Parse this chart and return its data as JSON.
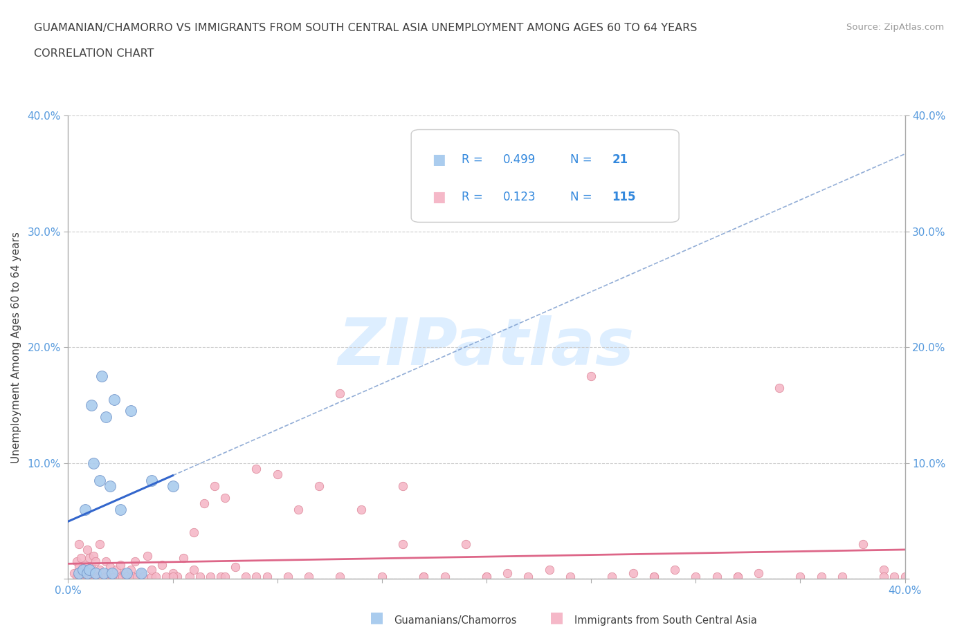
{
  "title_line1": "GUAMANIAN/CHAMORRO VS IMMIGRANTS FROM SOUTH CENTRAL ASIA UNEMPLOYMENT AMONG AGES 60 TO 64 YEARS",
  "title_line2": "CORRELATION CHART",
  "source_text": "Source: ZipAtlas.com",
  "ylabel": "Unemployment Among Ages 60 to 64 years",
  "xlim": [
    0.0,
    0.4
  ],
  "ylim": [
    0.0,
    0.4
  ],
  "series1_label": "Guamanians/Chamorros",
  "series1_color": "#aaccee",
  "series1_edge_color": "#7799cc",
  "series1_line_color": "#3366cc",
  "series1_dash_color": "#7799cc",
  "series1_R": 0.499,
  "series1_N": 21,
  "series2_label": "Immigrants from South Central Asia",
  "series2_color": "#f5b8c8",
  "series2_edge_color": "#dd8899",
  "series2_line_color": "#dd6688",
  "series2_R": 0.123,
  "series2_N": 115,
  "legend_color": "#3388dd",
  "watermark_text": "ZIPatlas",
  "watermark_color": "#ddeeff",
  "background_color": "#ffffff",
  "grid_color": "#cccccc",
  "title_color": "#404040",
  "axis_color": "#aaaaaa",
  "tick_color": "#5599dd",
  "s1_x": [
    0.005,
    0.007,
    0.008,
    0.009,
    0.01,
    0.011,
    0.012,
    0.013,
    0.015,
    0.016,
    0.017,
    0.018,
    0.02,
    0.021,
    0.022,
    0.025,
    0.028,
    0.03,
    0.035,
    0.04,
    0.05
  ],
  "s1_y": [
    0.005,
    0.008,
    0.06,
    0.005,
    0.008,
    0.15,
    0.1,
    0.005,
    0.085,
    0.175,
    0.005,
    0.14,
    0.08,
    0.005,
    0.155,
    0.06,
    0.005,
    0.145,
    0.005,
    0.085,
    0.08
  ],
  "s2_x": [
    0.003,
    0.004,
    0.004,
    0.005,
    0.005,
    0.005,
    0.006,
    0.006,
    0.007,
    0.007,
    0.008,
    0.008,
    0.009,
    0.009,
    0.01,
    0.01,
    0.01,
    0.011,
    0.011,
    0.012,
    0.012,
    0.013,
    0.013,
    0.014,
    0.015,
    0.015,
    0.015,
    0.016,
    0.017,
    0.018,
    0.018,
    0.019,
    0.02,
    0.02,
    0.021,
    0.022,
    0.023,
    0.025,
    0.025,
    0.026,
    0.027,
    0.028,
    0.03,
    0.03,
    0.031,
    0.032,
    0.033,
    0.035,
    0.036,
    0.038,
    0.04,
    0.04,
    0.042,
    0.045,
    0.047,
    0.05,
    0.052,
    0.055,
    0.058,
    0.06,
    0.063,
    0.065,
    0.068,
    0.07,
    0.073,
    0.075,
    0.08,
    0.085,
    0.09,
    0.095,
    0.1,
    0.105,
    0.11,
    0.115,
    0.12,
    0.13,
    0.14,
    0.15,
    0.16,
    0.17,
    0.18,
    0.19,
    0.2,
    0.21,
    0.22,
    0.23,
    0.24,
    0.25,
    0.26,
    0.27,
    0.28,
    0.29,
    0.3,
    0.31,
    0.32,
    0.33,
    0.34,
    0.35,
    0.36,
    0.37,
    0.38,
    0.39,
    0.395,
    0.32,
    0.28,
    0.39,
    0.4,
    0.16,
    0.06,
    0.17,
    0.075,
    0.05,
    0.09,
    0.13,
    0.2
  ],
  "s2_y": [
    0.005,
    0.002,
    0.015,
    0.002,
    0.01,
    0.03,
    0.002,
    0.018,
    0.002,
    0.008,
    0.002,
    0.012,
    0.002,
    0.025,
    0.002,
    0.005,
    0.018,
    0.002,
    0.01,
    0.002,
    0.02,
    0.002,
    0.015,
    0.002,
    0.002,
    0.008,
    0.03,
    0.002,
    0.005,
    0.002,
    0.015,
    0.002,
    0.002,
    0.01,
    0.002,
    0.002,
    0.008,
    0.002,
    0.012,
    0.002,
    0.005,
    0.002,
    0.002,
    0.008,
    0.002,
    0.015,
    0.002,
    0.005,
    0.002,
    0.02,
    0.002,
    0.008,
    0.002,
    0.012,
    0.002,
    0.005,
    0.002,
    0.018,
    0.002,
    0.04,
    0.002,
    0.065,
    0.002,
    0.08,
    0.002,
    0.07,
    0.01,
    0.002,
    0.095,
    0.002,
    0.09,
    0.002,
    0.06,
    0.002,
    0.08,
    0.002,
    0.06,
    0.002,
    0.08,
    0.002,
    0.002,
    0.03,
    0.002,
    0.005,
    0.002,
    0.008,
    0.002,
    0.175,
    0.002,
    0.005,
    0.002,
    0.008,
    0.002,
    0.002,
    0.002,
    0.005,
    0.165,
    0.002,
    0.002,
    0.002,
    0.03,
    0.008,
    0.002,
    0.002,
    0.002,
    0.002,
    0.002,
    0.03,
    0.008,
    0.002,
    0.002,
    0.002,
    0.002,
    0.16,
    0.002
  ]
}
